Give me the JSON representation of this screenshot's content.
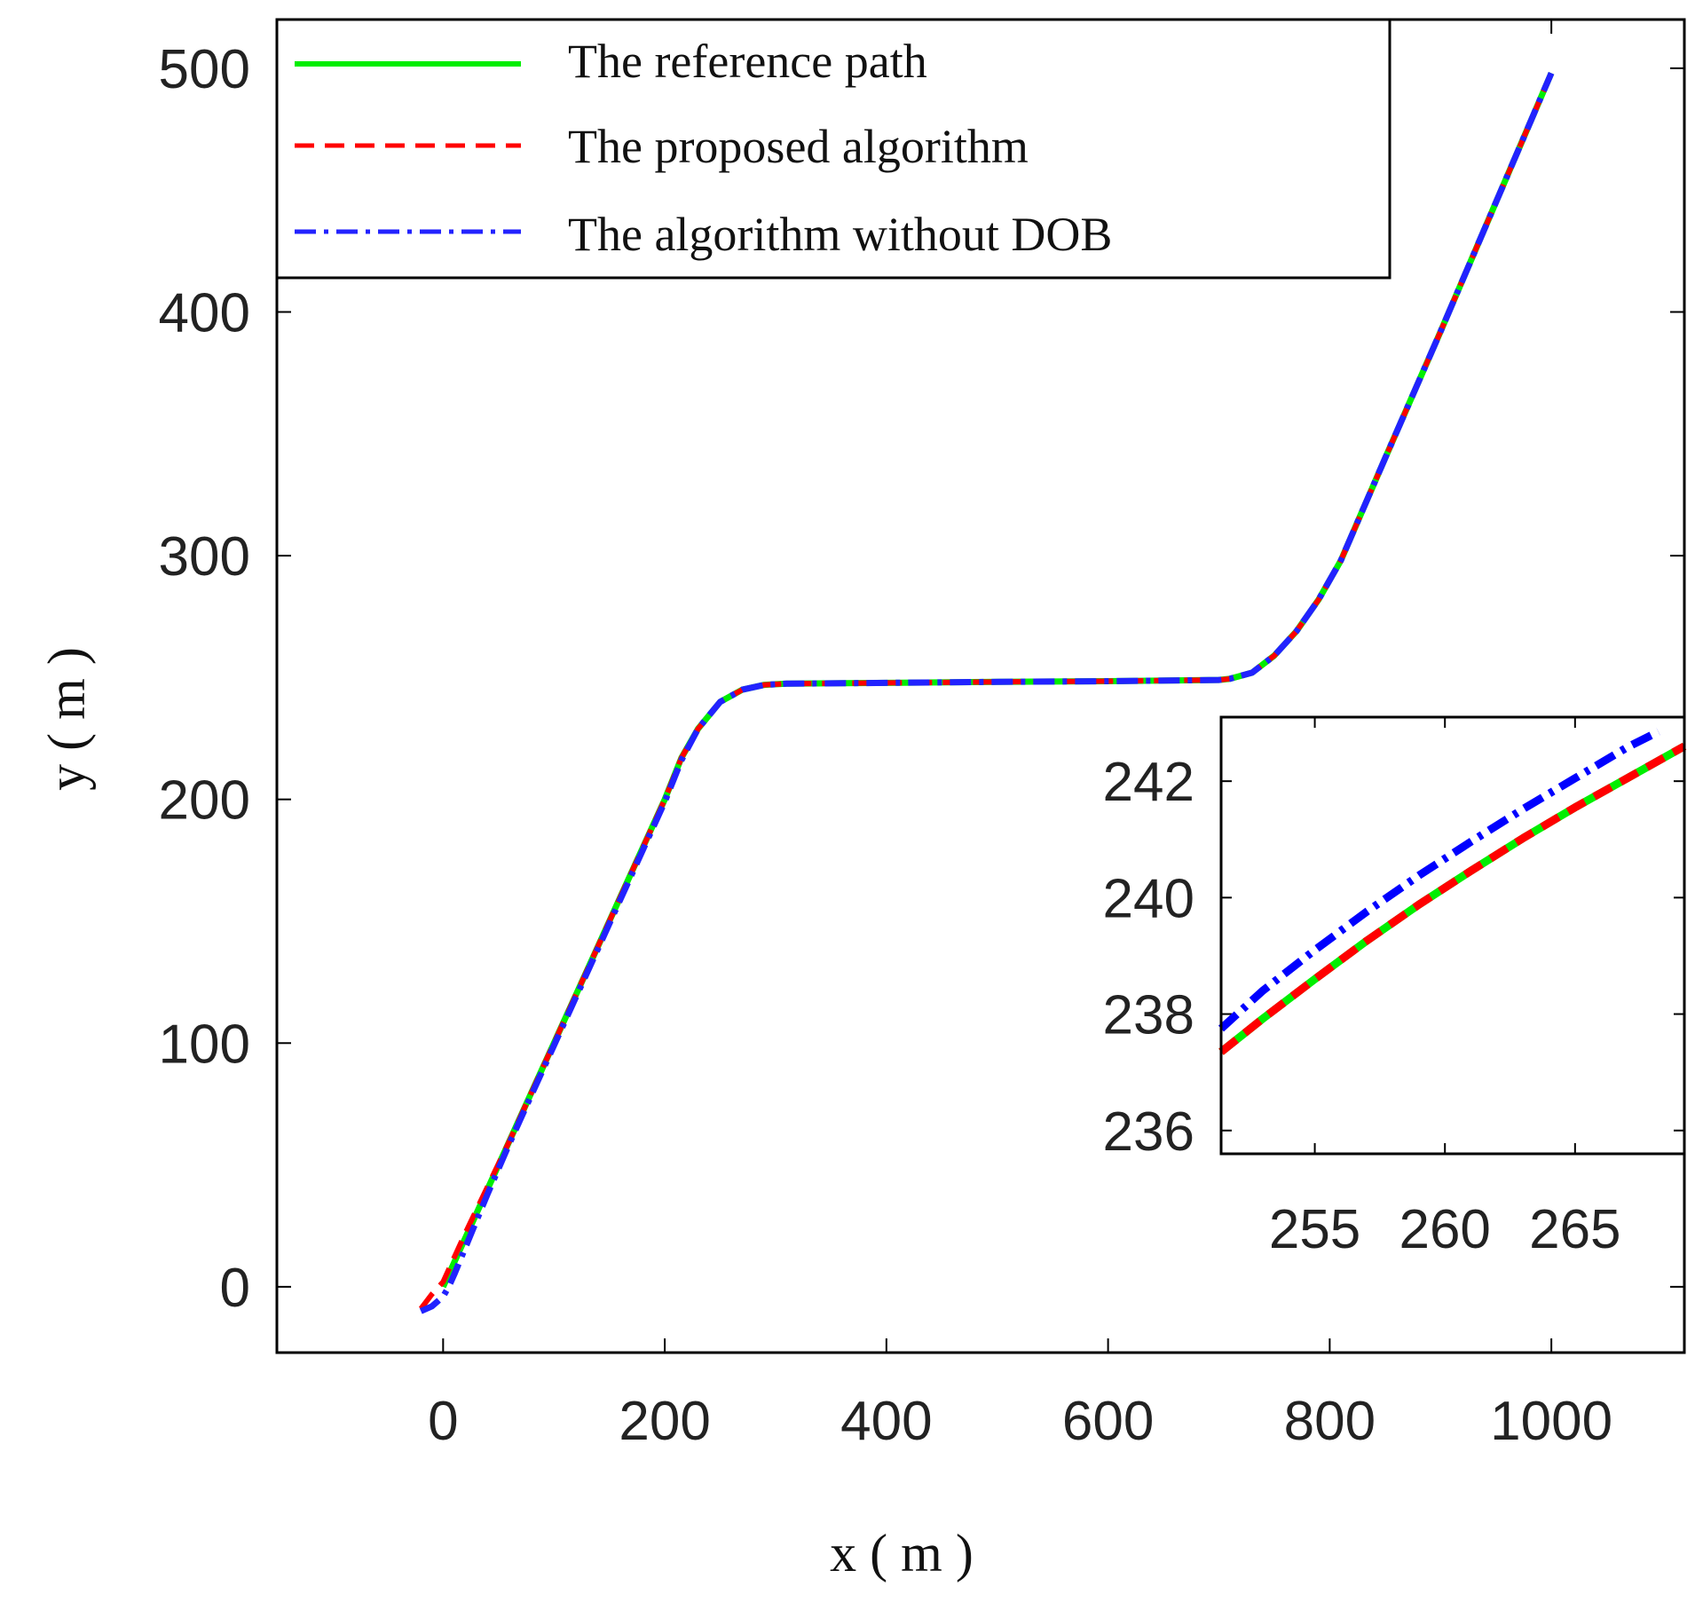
{
  "chart_data": [
    {
      "type": "line",
      "xlabel": "x ( m )",
      "ylabel": "y ( m )",
      "xlim": [
        -150,
        1120
      ],
      "ylim": [
        -27,
        520
      ],
      "xticks": [
        0,
        200,
        400,
        600,
        800,
        1000
      ],
      "yticks": [
        0,
        100,
        200,
        300,
        400,
        500
      ],
      "grid": false,
      "legend_position": "top-left",
      "series": [
        {
          "name": "The reference path",
          "color": "#00ee00",
          "style": "solid",
          "x": [
            0,
            20,
            40,
            60,
            80,
            100,
            120,
            140,
            160,
            180,
            200,
            215,
            230,
            250,
            270,
            290,
            310,
            400,
            500,
            600,
            700,
            710,
            730,
            750,
            770,
            790,
            810,
            850,
            900,
            950,
            1000
          ],
          "y": [
            0,
            20,
            40,
            60,
            80,
            100,
            120,
            140,
            160,
            180,
            200,
            217,
            229,
            240,
            245,
            247,
            247.5,
            247.8,
            248.2,
            248.5,
            249,
            249.5,
            252,
            259,
            269,
            282,
            298,
            340,
            392,
            445,
            498
          ]
        },
        {
          "name": "The proposed algorithm",
          "color": "#ff0000",
          "style": "dashed",
          "x": [
            -20,
            -10,
            0,
            10,
            20,
            40,
            60,
            80,
            100,
            120,
            140,
            160,
            180,
            200,
            215,
            230,
            250,
            270,
            290,
            310,
            400,
            500,
            600,
            700,
            710,
            730,
            750,
            770,
            790,
            810,
            850,
            900,
            950,
            1000
          ],
          "y": [
            -9,
            -3,
            2,
            12,
            22,
            41,
            60,
            80,
            100,
            120,
            140,
            160,
            180,
            200,
            217,
            229,
            240,
            245,
            247,
            247.5,
            247.8,
            248.2,
            248.5,
            249,
            249.5,
            252,
            259,
            269,
            282,
            298,
            340,
            392,
            445,
            498
          ]
        },
        {
          "name": "The algorithm without DOB",
          "color": "#2222ff",
          "style": "dashdot",
          "x": [
            -20,
            -10,
            0,
            5,
            10,
            20,
            40,
            60,
            80,
            100,
            120,
            140,
            160,
            180,
            200,
            215,
            230,
            250,
            270,
            290,
            310,
            400,
            500,
            600,
            700,
            710,
            730,
            750,
            770,
            790,
            810,
            850,
            900,
            950,
            1000
          ],
          "y": [
            -10,
            -8,
            -4,
            0,
            5,
            16,
            38,
            59,
            79,
            99,
            119,
            139,
            159,
            179,
            199,
            216,
            229,
            240,
            245,
            247,
            247.5,
            247.8,
            248.2,
            248.5,
            249,
            249.5,
            252,
            259,
            269,
            282,
            298,
            340,
            392,
            445,
            498
          ]
        }
      ]
    },
    {
      "type": "line",
      "xlim": [
        251.4,
        269.2
      ],
      "ylim": [
        235.6,
        243.1
      ],
      "xticks": [
        255,
        260,
        265
      ],
      "yticks": [
        236,
        238,
        240,
        242
      ],
      "grid": false,
      "series": [
        {
          "name": "The reference path",
          "color": "#00ee00",
          "style": "solid",
          "x": [
            251.4,
            253,
            255,
            257,
            259,
            261,
            263,
            265,
            267,
            269.2
          ],
          "y": [
            237.35,
            237.92,
            238.6,
            239.26,
            239.88,
            240.46,
            241.02,
            241.55,
            242.05,
            242.6
          ]
        },
        {
          "name": "The proposed algorithm",
          "color": "#ff0000",
          "style": "dashed",
          "x": [
            251.4,
            253,
            255,
            257,
            259,
            261,
            263,
            265,
            267,
            269.2
          ],
          "y": [
            237.35,
            237.92,
            238.6,
            239.26,
            239.88,
            240.46,
            241.02,
            241.55,
            242.05,
            242.6
          ]
        },
        {
          "name": "The algorithm without DOB",
          "color": "#0000ff",
          "style": "dashdot",
          "x": [
            251.4,
            253,
            255,
            257,
            259,
            261,
            263,
            265,
            267,
            268.2
          ],
          "y": [
            237.75,
            238.4,
            239.1,
            239.76,
            240.38,
            240.96,
            241.52,
            242.05,
            242.58,
            242.85
          ]
        }
      ]
    }
  ]
}
